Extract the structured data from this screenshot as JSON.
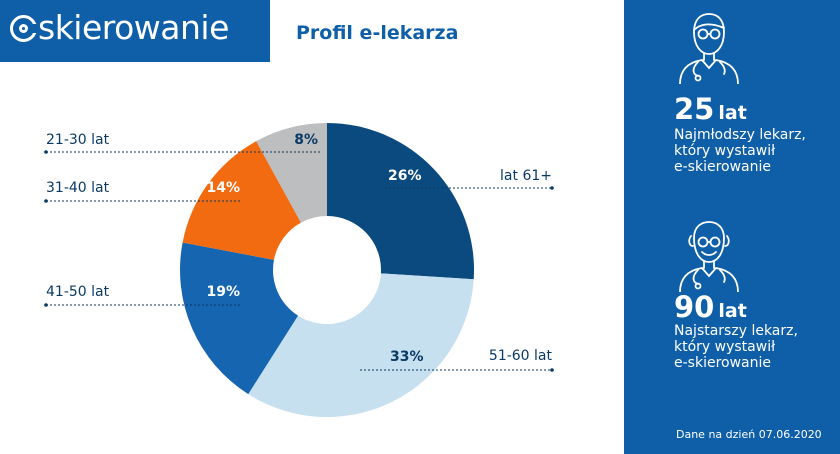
{
  "logo": {
    "text": "skierowanie"
  },
  "page_title": "Profil e-lekarza",
  "sidebar": {
    "youngest": {
      "value": "25",
      "unit": "lat",
      "lines": [
        "Najmłodszy lekarz,",
        "który wystawił",
        "e-skierowanie"
      ]
    },
    "oldest": {
      "value": "90",
      "unit": "lat",
      "lines": [
        "Najstarszy lekarz,",
        "który wystawił",
        "e-skierowanie"
      ]
    },
    "footer": "Dane na dzień 07.06.2020",
    "icons": [
      "young-doctor-icon",
      "old-doctor-icon"
    ]
  },
  "chart_data": {
    "type": "pie",
    "donut": true,
    "categories": [
      "lat 61+",
      "51-60 lat",
      "41-50 lat",
      "31-40 lat",
      "21-30 lat"
    ],
    "values": [
      26,
      33,
      19,
      14,
      8
    ],
    "value_labels": [
      "26%",
      "33%",
      "19%",
      "14%",
      "8%"
    ],
    "colors": [
      "#0b4a7e",
      "#c6e0f0",
      "#1565b0",
      "#f26b10",
      "#bcbec0"
    ],
    "value_label_colors": [
      "#ffffff",
      "#0b3a64",
      "#ffffff",
      "#ffffff",
      "#0b3a64"
    ]
  },
  "colors": {
    "brand": "#0f5fa8",
    "label_text": "#0b3a64"
  }
}
